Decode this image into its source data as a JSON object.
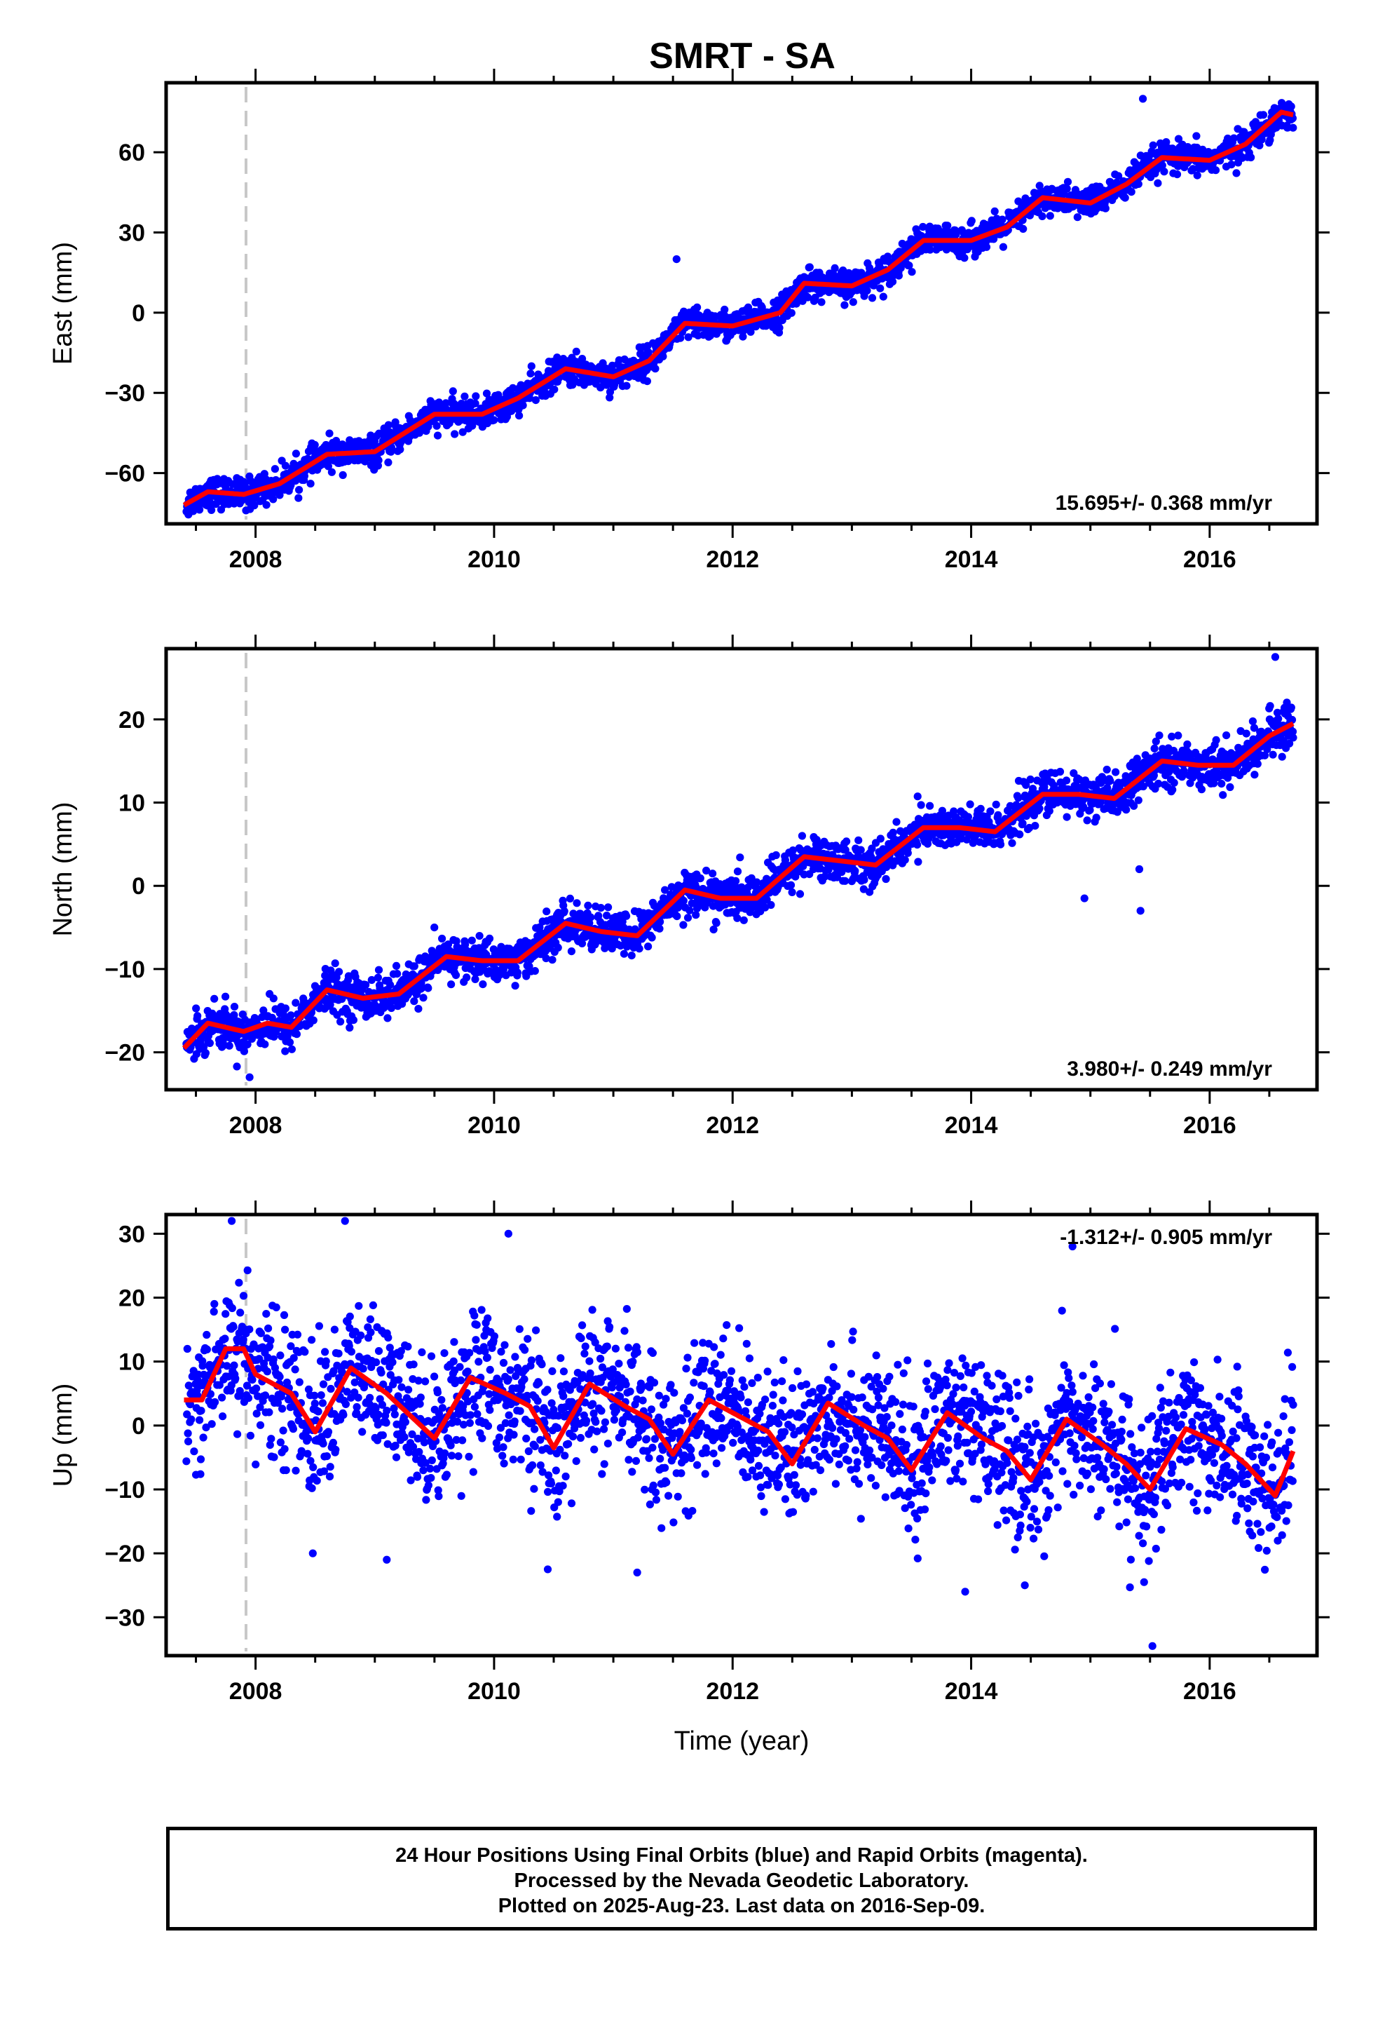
{
  "title": "SMRT - SA",
  "xlabel": "Time (year)",
  "footer": {
    "line1": "24 Hour Positions Using Final Orbits (blue) and Rapid Orbits (magenta).",
    "line2": "Processed by the Nevada Geodetic Laboratory.",
    "line3": "Plotted on 2025-Aug-23. Last data on 2016-Sep-09."
  },
  "colors": {
    "points": "#0000ff",
    "model": "#ff0000",
    "marker": "#c8c8c8",
    "frame": "#000000"
  },
  "chart_data": [
    {
      "type": "scatter",
      "ylabel": "East (mm)",
      "rate_label": "15.695+/- 0.368 mm/yr",
      "xlim": [
        2007.25,
        2016.9
      ],
      "ylim": [
        -79,
        86
      ],
      "yticks": [
        -60,
        -30,
        0,
        30,
        60
      ],
      "xticks": [
        2008,
        2010,
        2012,
        2014,
        2016
      ],
      "marker_line_x": 2007.92,
      "series": [
        {
          "trend": {
            "rate": 15.695,
            "value_at_2007_4": -72
          },
          "model_points": [
            [
              2007.4,
              -72
            ],
            [
              2007.6,
              -67
            ],
            [
              2007.9,
              -68
            ],
            [
              2008.2,
              -64
            ],
            [
              2008.6,
              -53
            ],
            [
              2009.0,
              -52
            ],
            [
              2009.5,
              -38
            ],
            [
              2009.9,
              -38
            ],
            [
              2010.2,
              -32
            ],
            [
              2010.6,
              -21
            ],
            [
              2011.0,
              -24
            ],
            [
              2011.3,
              -18
            ],
            [
              2011.6,
              -4
            ],
            [
              2012.0,
              -5
            ],
            [
              2012.4,
              0
            ],
            [
              2012.6,
              11
            ],
            [
              2013.0,
              10
            ],
            [
              2013.3,
              16
            ],
            [
              2013.6,
              27
            ],
            [
              2014.0,
              27
            ],
            [
              2014.3,
              32
            ],
            [
              2014.6,
              43
            ],
            [
              2015.0,
              41
            ],
            [
              2015.3,
              48
            ],
            [
              2015.6,
              58
            ],
            [
              2016.0,
              57
            ],
            [
              2016.3,
              63
            ],
            [
              2016.6,
              75
            ],
            [
              2016.7,
              74
            ]
          ],
          "scatter_sd": 2.8,
          "outliers": [
            [
              2011.53,
              20
            ],
            [
              2015.44,
              80
            ],
            [
              2007.92,
              -74
            ]
          ]
        }
      ]
    },
    {
      "type": "scatter",
      "ylabel": "North (mm)",
      "rate_label": "3.980+/- 0.249 mm/yr",
      "xlim": [
        2007.25,
        2016.9
      ],
      "ylim": [
        -24.5,
        28.5
      ],
      "yticks": [
        -20,
        -10,
        0,
        10,
        20
      ],
      "xticks": [
        2008,
        2010,
        2012,
        2014,
        2016
      ],
      "marker_line_x": 2007.92,
      "series": [
        {
          "model_points": [
            [
              2007.4,
              -19.5
            ],
            [
              2007.6,
              -16.5
            ],
            [
              2007.9,
              -17.5
            ],
            [
              2008.1,
              -16.5
            ],
            [
              2008.3,
              -17
            ],
            [
              2008.6,
              -12.5
            ],
            [
              2008.9,
              -13.5
            ],
            [
              2009.2,
              -13
            ],
            [
              2009.6,
              -8.5
            ],
            [
              2009.9,
              -9
            ],
            [
              2010.2,
              -9
            ],
            [
              2010.6,
              -4.5
            ],
            [
              2010.9,
              -5.5
            ],
            [
              2011.2,
              -6
            ],
            [
              2011.6,
              -0.5
            ],
            [
              2011.9,
              -1.5
            ],
            [
              2012.2,
              -1.5
            ],
            [
              2012.6,
              3.5
            ],
            [
              2012.9,
              3
            ],
            [
              2013.2,
              2.5
            ],
            [
              2013.6,
              7
            ],
            [
              2013.9,
              7
            ],
            [
              2014.2,
              6.5
            ],
            [
              2014.6,
              11
            ],
            [
              2014.9,
              11
            ],
            [
              2015.2,
              10.5
            ],
            [
              2015.6,
              15
            ],
            [
              2015.9,
              14.5
            ],
            [
              2016.2,
              14.5
            ],
            [
              2016.5,
              18
            ],
            [
              2016.7,
              19.5
            ]
          ],
          "scatter_sd": 1.3,
          "outliers": [
            [
              2015.42,
              -3
            ],
            [
              2015.41,
              2
            ],
            [
              2014.95,
              -1.5
            ],
            [
              2007.95,
              -23
            ],
            [
              2016.55,
              27.5
            ]
          ]
        }
      ]
    },
    {
      "type": "scatter",
      "ylabel": "Up (mm)",
      "rate_label": "-1.312+/- 0.905 mm/yr",
      "xlim": [
        2007.25,
        2016.9
      ],
      "ylim": [
        -36,
        33
      ],
      "yticks": [
        -30,
        -20,
        -10,
        0,
        10,
        20,
        30
      ],
      "xticks": [
        2008,
        2010,
        2012,
        2014,
        2016
      ],
      "marker_line_x": 2007.92,
      "series": [
        {
          "model_points": [
            [
              2007.4,
              4
            ],
            [
              2007.55,
              4
            ],
            [
              2007.75,
              12
            ],
            [
              2007.9,
              12
            ],
            [
              2008.0,
              8
            ],
            [
              2008.3,
              5
            ],
            [
              2008.5,
              -1
            ],
            [
              2008.8,
              9
            ],
            [
              2009.1,
              5
            ],
            [
              2009.5,
              -2
            ],
            [
              2009.8,
              7.5
            ],
            [
              2010.1,
              5
            ],
            [
              2010.3,
              3
            ],
            [
              2010.5,
              -3.5
            ],
            [
              2010.8,
              6.5
            ],
            [
              2011.1,
              3
            ],
            [
              2011.3,
              1
            ],
            [
              2011.5,
              -4.5
            ],
            [
              2011.8,
              4
            ],
            [
              2012.1,
              1
            ],
            [
              2012.3,
              -1
            ],
            [
              2012.5,
              -6
            ],
            [
              2012.8,
              3.5
            ],
            [
              2013.1,
              0
            ],
            [
              2013.3,
              -2
            ],
            [
              2013.5,
              -7
            ],
            [
              2013.8,
              2
            ],
            [
              2014.1,
              -2
            ],
            [
              2014.3,
              -4
            ],
            [
              2014.5,
              -8.5
            ],
            [
              2014.8,
              1
            ],
            [
              2015.1,
              -3
            ],
            [
              2015.3,
              -6
            ],
            [
              2015.5,
              -10
            ],
            [
              2015.8,
              -0.5
            ],
            [
              2016.1,
              -3
            ],
            [
              2016.3,
              -6
            ],
            [
              2016.55,
              -11
            ],
            [
              2016.7,
              -4
            ]
          ],
          "scatter_sd": 5.5,
          "outliers": [
            [
              2007.8,
              32
            ],
            [
              2008.75,
              32
            ],
            [
              2010.12,
              30
            ],
            [
              2014.85,
              28
            ],
            [
              2015.52,
              -34.5
            ],
            [
              2010.45,
              -22.5
            ],
            [
              2011.2,
              -23
            ],
            [
              2008.48,
              -20
            ],
            [
              2009.1,
              -21
            ],
            [
              2013.95,
              -26
            ],
            [
              2015.45,
              -24.5
            ],
            [
              2014.45,
              -25
            ]
          ]
        }
      ]
    }
  ]
}
